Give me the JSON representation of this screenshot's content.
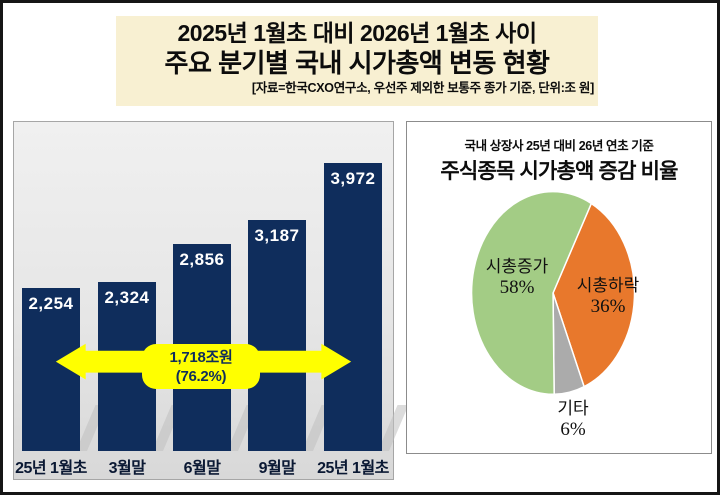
{
  "header": {
    "title_line1": "2025년 1월초 대비 2026년 1월초 사이",
    "title_line2": "주요 분기별 국내 시가총액 변동 현황",
    "source_note": "[자료=한국CXO연구소, 우선주 제외한 보통주 종가 기준, 단위:조 원]",
    "background_color": "#F8F0D2"
  },
  "chart_data": [
    {
      "type": "bar",
      "categories": [
        "25년 1월초",
        "3월말",
        "6월말",
        "9월말",
        "25년 1월초"
      ],
      "values": [
        2254,
        2324,
        2856,
        3187,
        3972
      ],
      "value_labels": [
        "2,254",
        "2,324",
        "2,856",
        "3,187",
        "3,972"
      ],
      "ylim": [
        0,
        3972
      ],
      "bar_color": "#0F2D5C",
      "grid": false,
      "annotation": {
        "line1": "1,718조원",
        "line2": "(76.2%)",
        "badge_color": "#FFFF00",
        "text_color": "#0F2D5C"
      }
    },
    {
      "type": "pie",
      "subtitle": "국내 상장사 25년 대비 26년 연초 기준",
      "title": "주식종목 시가총액 증감 비율",
      "start_angle_deg": 28,
      "slices": [
        {
          "label": "시총하락",
          "pct": 36,
          "pct_label": "36%",
          "color": "#E8782C"
        },
        {
          "label": "기타",
          "pct": 6,
          "pct_label": "6%",
          "color": "#ABABAB"
        },
        {
          "label": "시총증가",
          "pct": 58,
          "pct_label": "58%",
          "color": "#A3CC85"
        }
      ],
      "legend": "none"
    }
  ]
}
